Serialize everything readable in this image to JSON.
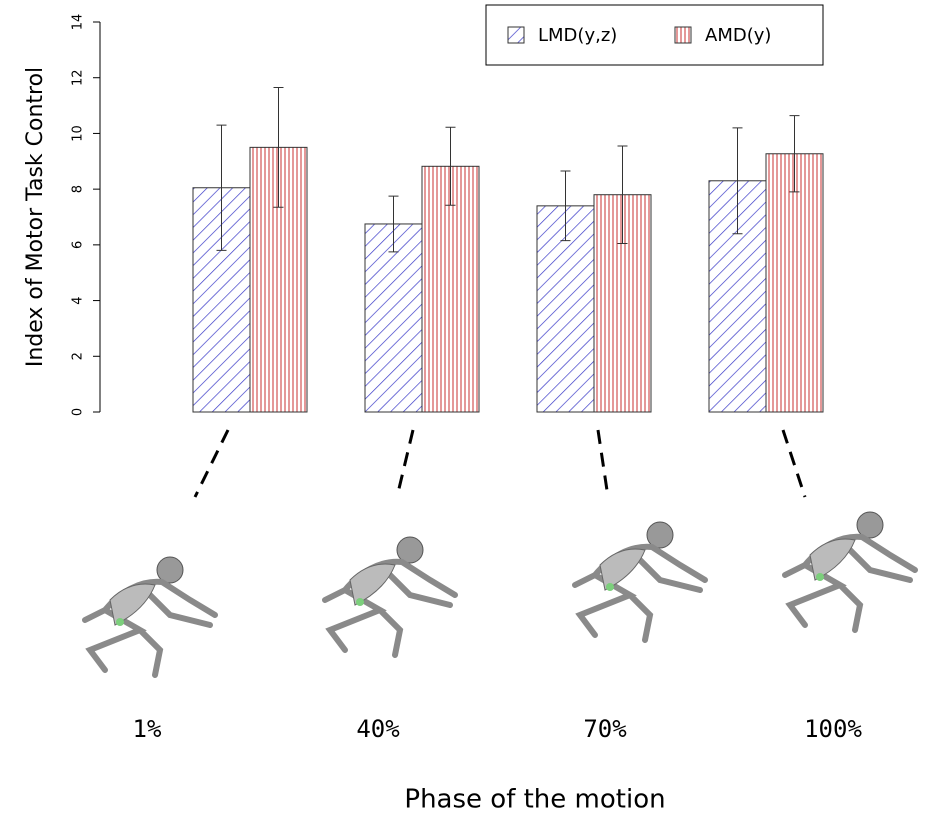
{
  "chart_data": {
    "type": "bar",
    "ylabel": "Index of Motor Task Control",
    "xlabel": "Phase of the motion",
    "categories": [
      "1%",
      "40%",
      "70%",
      "100%"
    ],
    "series": [
      {
        "name": "LMD(y,z)",
        "color": "#3b3bc8",
        "hatch": "diagonal",
        "values": [
          8.05,
          6.75,
          7.4,
          8.3
        ],
        "errors": [
          2.25,
          1.0,
          1.25,
          1.9
        ]
      },
      {
        "name": "AMD(y)",
        "color": "#c83232",
        "hatch": "vertical",
        "values": [
          9.5,
          8.82,
          7.8,
          9.27
        ],
        "errors": [
          2.15,
          1.4,
          1.75,
          1.37
        ]
      }
    ],
    "ylim": [
      0,
      14
    ],
    "yticks": [
      0,
      2,
      4,
      6,
      8,
      10,
      12,
      14
    ],
    "legend": "top-right",
    "grid": false
  }
}
